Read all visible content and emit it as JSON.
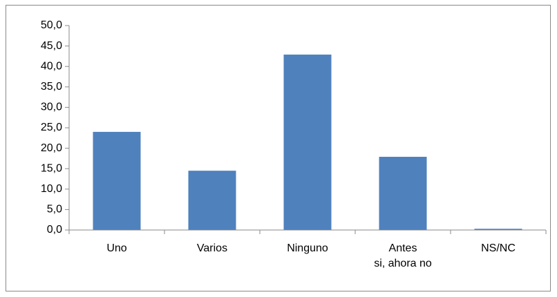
{
  "chart_data": {
    "type": "bar",
    "categories": [
      "Uno",
      "Varios",
      "Ninguno",
      "Antes\nsi, ahora no",
      "NS/NC"
    ],
    "values": [
      24.0,
      14.5,
      42.9,
      17.9,
      0.3
    ],
    "color": "#4f81bd",
    "ylim": [
      0,
      50
    ],
    "yticks": [
      {
        "value": 0,
        "label": "0,0"
      },
      {
        "value": 5,
        "label": "5,0"
      },
      {
        "value": 10,
        "label": "10,0"
      },
      {
        "value": 15,
        "label": "15,0"
      },
      {
        "value": 20,
        "label": "20,0"
      },
      {
        "value": 25,
        "label": "25,0"
      },
      {
        "value": 30,
        "label": "30,0"
      },
      {
        "value": 35,
        "label": "35,0"
      },
      {
        "value": 40,
        "label": "40,0"
      },
      {
        "value": 45,
        "label": "45,0"
      },
      {
        "value": 50,
        "label": "50,0"
      }
    ],
    "grid": false
  }
}
